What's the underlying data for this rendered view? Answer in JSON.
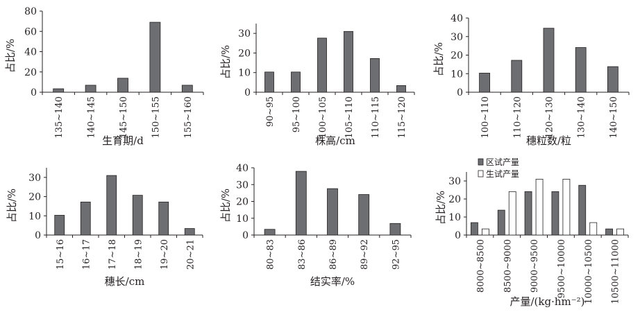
{
  "colors": {
    "bar": "#6d6e71",
    "bar2": "#ffffff",
    "axis": "#231f20",
    "stroke": "#231f20"
  },
  "chart_data": [
    {
      "type": "bar",
      "categories": [
        "135~140",
        "140~145",
        "145~150",
        "150~155",
        "155~160"
      ],
      "values": [
        3.4,
        6.9,
        13.8,
        69.0,
        6.9
      ],
      "xlabel": "生育期/d",
      "ylabel": "占比/%",
      "ylim": [
        0,
        80
      ],
      "yticks": [
        0,
        20,
        40,
        60,
        80
      ],
      "grid": false
    },
    {
      "type": "bar",
      "categories": [
        "90~95",
        "95~100",
        "100~105",
        "105~110",
        "110~115",
        "115~120"
      ],
      "values": [
        10.3,
        10.3,
        27.6,
        31.0,
        17.2,
        3.4
      ],
      "xlabel": "株高/cm",
      "ylabel": "占比/%",
      "ylim": [
        0,
        35
      ],
      "yticks": [
        0,
        10,
        20,
        30
      ],
      "grid": false
    },
    {
      "type": "bar",
      "categories": [
        "100~110",
        "110~120",
        "120~130",
        "130~140",
        "140~150"
      ],
      "values": [
        10.3,
        17.2,
        34.5,
        24.1,
        13.8
      ],
      "xlabel": "穗粒数/粒",
      "ylabel": "占比/%",
      "ylim": [
        0,
        40
      ],
      "yticks": [
        0,
        10,
        20,
        30,
        40
      ],
      "grid": false
    },
    {
      "type": "bar",
      "categories": [
        "15~16",
        "16~17",
        "17~18",
        "18~19",
        "19~20",
        "20~21"
      ],
      "values": [
        10.3,
        17.2,
        31.0,
        20.7,
        17.2,
        3.4
      ],
      "xlabel": "穗长/cm",
      "ylabel": "占比/%",
      "ylim": [
        0,
        35
      ],
      "yticks": [
        0,
        10,
        20,
        30
      ],
      "grid": false
    },
    {
      "type": "bar",
      "categories": [
        "80~83",
        "83~86",
        "86~89",
        "89~92",
        "92~95"
      ],
      "values": [
        3.4,
        37.9,
        27.6,
        24.1,
        6.9
      ],
      "xlabel": "结实率/%",
      "ylabel": "占比/%",
      "ylim": [
        0,
        40
      ],
      "yticks": [
        0,
        10,
        20,
        30,
        40
      ],
      "grid": false
    },
    {
      "type": "bar",
      "categories": [
        "8000~8500",
        "8500~9000",
        "9000~9500",
        "9500~10000",
        "10000~10500",
        "10500~11000"
      ],
      "series": [
        {
          "name": "区试产量",
          "values": [
            6.9,
            13.8,
            24.1,
            24.1,
            27.6,
            3.4
          ]
        },
        {
          "name": "生试产量",
          "values": [
            3.4,
            24.1,
            31.0,
            31.0,
            6.9,
            3.4
          ]
        }
      ],
      "xlabel": "产量/(kg·hm⁻²)",
      "ylabel": "占比/%",
      "ylim": [
        0,
        35
      ],
      "yticks": [
        0,
        10,
        20,
        30
      ],
      "grid": false,
      "legend": "top-left"
    }
  ]
}
